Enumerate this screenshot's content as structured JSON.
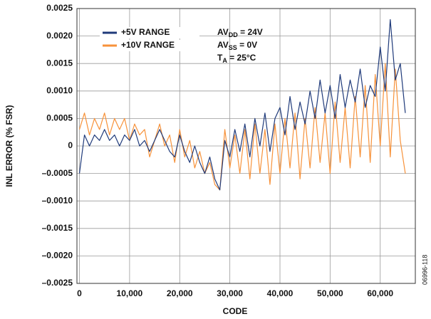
{
  "chart_data": {
    "type": "line",
    "xlabel": "CODE",
    "ylabel": "INL ERROR (% FSR)",
    "figure_id": "06996-118",
    "annotations": [
      {
        "text": "AV",
        "sub": "DD",
        "rest": " = 24V"
      },
      {
        "text": "AV",
        "sub": "SS",
        "rest": " = 0V"
      },
      {
        "text": "T",
        "sub": "A",
        "rest": " = 25°C"
      }
    ],
    "xlim": [
      -500,
      67000
    ],
    "ylim": [
      -0.0025,
      0.0025
    ],
    "grid": true,
    "legend": "upper left",
    "xticks": [
      0,
      {
        "value": 10000,
        "label": "10,000"
      },
      {
        "value": 20000,
        "label": "20,000"
      },
      {
        "value": 30000,
        "label": "30,000"
      },
      {
        "value": 40000,
        "label": "40,000"
      },
      {
        "value": 50000,
        "label": "50,000"
      },
      {
        "value": 60000,
        "label": "60,000"
      }
    ],
    "yticks": [
      {
        "value": -0.0025,
        "label": "–0.0025"
      },
      {
        "value": -0.002,
        "label": "–0.0020"
      },
      {
        "value": -0.0015,
        "label": "–0.0015"
      },
      {
        "value": -0.001,
        "label": "–0.0010"
      },
      {
        "value": -0.0005,
        "label": "–0.0005"
      },
      0,
      0.0005,
      {
        "value": 0.001,
        "label": "0.0010"
      },
      0.0015,
      {
        "value": 0.002,
        "label": "0.0020"
      },
      0.0025
    ],
    "x": [
      0,
      1000,
      2000,
      3000,
      4000,
      5000,
      6000,
      7000,
      8000,
      9000,
      10000,
      11000,
      12000,
      13000,
      14000,
      15000,
      16000,
      17000,
      18000,
      19000,
      20000,
      21000,
      22000,
      23000,
      24000,
      25000,
      26000,
      27000,
      28000,
      29000,
      30000,
      31000,
      32000,
      33000,
      34000,
      35000,
      36000,
      37000,
      38000,
      39000,
      40000,
      41000,
      42000,
      43000,
      44000,
      45000,
      46000,
      47000,
      48000,
      49000,
      50000,
      51000,
      52000,
      53000,
      54000,
      55000,
      56000,
      57000,
      58000,
      59000,
      60000,
      61000,
      62000,
      63000,
      64000,
      65000
    ],
    "series": [
      {
        "name": "+10V RANGE",
        "color": "#f7923a",
        "values": [
          0.0003,
          0.0006,
          0.0002,
          0.0005,
          0.0003,
          0.0006,
          0.0002,
          0.0005,
          0.0003,
          0.0005,
          0.0001,
          0.0004,
          0.0002,
          0.0003,
          -0.0002,
          0.0001,
          0.0004,
          0.0,
          0.0002,
          -0.0003,
          0.0003,
          -0.0002,
          0.0001,
          -0.0004,
          -0.0001,
          -0.0005,
          -0.0003,
          -0.0007,
          -0.0008,
          0.0003,
          -0.0004,
          0.0002,
          -0.0005,
          0.0003,
          -0.0006,
          0.0004,
          -0.0005,
          0.0003,
          -0.0007,
          0.0004,
          -0.0005,
          0.0005,
          -0.0004,
          0.0006,
          -0.0006,
          0.0005,
          -0.0004,
          0.0007,
          -0.0003,
          0.0006,
          -0.0005,
          0.0008,
          -0.0003,
          0.0007,
          -0.0004,
          0.0009,
          -0.0002,
          0.0011,
          -0.0003,
          0.0013,
          0.0,
          0.0015,
          -0.0002,
          0.0014,
          0.0001,
          -0.0005
        ]
      },
      {
        "name": "+5V RANGE",
        "color": "#1f3a7a",
        "values": [
          -0.0005,
          0.0002,
          0.0,
          0.0002,
          0.0001,
          0.0003,
          0.0001,
          0.0002,
          0.0,
          0.0002,
          0.0001,
          0.0003,
          0.0,
          0.0001,
          -0.0001,
          0.0001,
          0.0003,
          0.0001,
          -0.0001,
          -0.0002,
          0.0002,
          -0.0001,
          -0.0003,
          0.0,
          -0.0003,
          -0.0005,
          -0.0002,
          -0.0006,
          -0.0008,
          0.0001,
          -0.0002,
          0.0003,
          -0.0001,
          0.0004,
          -0.0002,
          0.0005,
          0.0,
          0.0006,
          -0.0001,
          0.0005,
          0.0007,
          0.0002,
          0.0009,
          0.0003,
          0.0008,
          0.0004,
          0.001,
          0.0005,
          0.0012,
          0.0006,
          0.0011,
          0.0005,
          0.0013,
          0.0007,
          0.0012,
          0.0008,
          0.0014,
          0.0007,
          0.0011,
          0.0009,
          0.0018,
          0.001,
          0.0023,
          0.0012,
          0.0015,
          0.0006
        ]
      }
    ]
  }
}
